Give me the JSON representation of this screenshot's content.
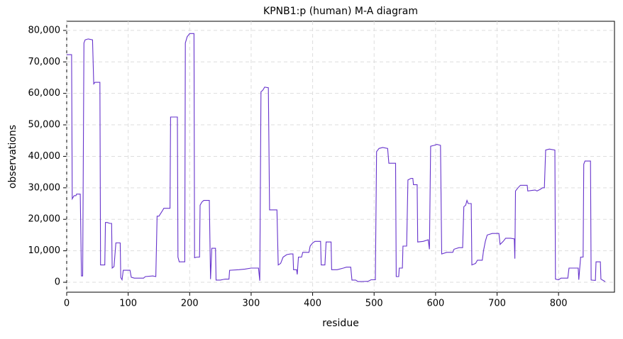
{
  "chart_data": {
    "type": "line",
    "title": "KPNB1:p (human) M-A diagram",
    "xlabel": "residue",
    "ylabel": "observations",
    "grid": true,
    "xlim": [
      0,
      891
    ],
    "ylim": [
      -3150,
      82900
    ],
    "xticks": [
      0,
      100,
      200,
      300,
      400,
      500,
      600,
      700,
      800
    ],
    "yticks": [
      0,
      {
        "value": 10000,
        "label": "10,000"
      },
      {
        "value": 20000,
        "label": "20,000"
      },
      {
        "value": 30000,
        "label": "30,000"
      },
      {
        "value": 40000,
        "label": "40,000"
      },
      {
        "value": 50000,
        "label": "50,000"
      },
      {
        "value": 60000,
        "label": "60,000"
      },
      {
        "value": 70000,
        "label": "70,000"
      },
      {
        "value": 80000,
        "label": "80,000"
      }
    ],
    "series": [
      {
        "color": "#6633cc",
        "x": [
          0,
          8,
          9,
          12,
          15,
          16,
          22,
          24,
          26,
          28,
          30,
          35,
          42,
          44,
          46,
          54,
          55,
          62,
          63,
          66,
          70,
          73,
          74,
          77,
          80,
          87,
          88,
          90,
          92,
          103,
          105,
          110,
          125,
          128,
          140,
          145,
          147,
          150,
          155,
          158,
          168,
          169,
          180,
          181,
          183,
          192,
          193,
          196,
          200,
          207,
          208,
          212,
          216,
          217,
          220,
          223,
          232,
          234,
          236,
          242,
          243,
          250,
          255,
          258,
          264,
          265,
          280,
          290,
          300,
          312,
          314,
          316,
          319,
          322,
          328,
          330,
          342,
          344,
          348,
          352,
          358,
          364,
          368,
          369,
          374,
          375,
          377,
          382,
          384,
          394,
          396,
          400,
          404,
          413,
          414,
          420,
          422,
          430,
          431,
          440,
          450,
          455,
          462,
          464,
          470,
          474,
          490,
          495,
          502,
          504,
          508,
          514,
          522,
          524,
          535,
          536,
          540,
          541,
          546,
          547,
          553,
          555,
          560,
          563,
          564,
          570,
          571,
          580,
          588,
          590,
          592,
          598,
          602,
          608,
          610,
          618,
          628,
          630,
          638,
          644,
          646,
          649,
          651,
          653,
          658,
          659,
          665,
          668,
          676,
          678,
          681,
          684,
          692,
          703,
          705,
          710,
          714,
          722,
          728,
          729,
          730,
          734,
          738,
          749,
          750,
          762,
          765,
          770,
          774,
          777,
          779,
          785,
          794,
          795,
          800,
          804,
          815,
          817,
          832,
          833,
          836,
          840,
          841,
          843,
          852,
          853,
          860,
          861,
          868,
          869,
          876
        ],
        "values": [
          72300,
          72300,
          26500,
          27500,
          27500,
          28000,
          28000,
          2000,
          2000,
          76000,
          77000,
          77300,
          77000,
          63000,
          63500,
          63500,
          5500,
          5500,
          19000,
          19000,
          18700,
          18700,
          4500,
          5000,
          12500,
          12500,
          1500,
          800,
          3800,
          3800,
          1600,
          1300,
          1300,
          1800,
          2000,
          1800,
          21000,
          21000,
          22500,
          23500,
          23500,
          52500,
          52500,
          8000,
          6500,
          6500,
          76000,
          78000,
          79000,
          79000,
          7800,
          8000,
          8000,
          24500,
          25500,
          26000,
          26000,
          1000,
          10800,
          10800,
          700,
          700,
          900,
          1000,
          1000,
          3800,
          4000,
          4200,
          4500,
          4500,
          500,
          60500,
          61000,
          62000,
          61800,
          23000,
          23000,
          5500,
          6000,
          8000,
          8800,
          9000,
          9000,
          4000,
          4000,
          2500,
          8000,
          8000,
          9500,
          9500,
          11500,
          12500,
          13000,
          13000,
          5500,
          5500,
          12800,
          12800,
          4000,
          4000,
          4500,
          4800,
          4800,
          700,
          700,
          200,
          300,
          800,
          800,
          41500,
          42500,
          42800,
          42500,
          37800,
          37800,
          1800,
          1800,
          4500,
          4500,
          11500,
          11500,
          32500,
          33000,
          33000,
          31000,
          31000,
          12800,
          13000,
          13500,
          10500,
          43200,
          43500,
          43800,
          43500,
          9000,
          9500,
          9500,
          10500,
          11000,
          11000,
          24000,
          24500,
          26000,
          25000,
          25000,
          5500,
          6000,
          7000,
          7000,
          10000,
          13000,
          15000,
          15500,
          15500,
          12000,
          13000,
          14000,
          14000,
          13800,
          7500,
          29000,
          30000,
          30800,
          30800,
          29000,
          29300,
          29000,
          29500,
          30000,
          30000,
          42000,
          42300,
          42000,
          1000,
          800,
          1300,
          1300,
          4500,
          4500,
          800,
          8000,
          8000,
          37500,
          38500,
          38500,
          700,
          600,
          6500,
          6500,
          1000,
          200
        ]
      }
    ]
  }
}
